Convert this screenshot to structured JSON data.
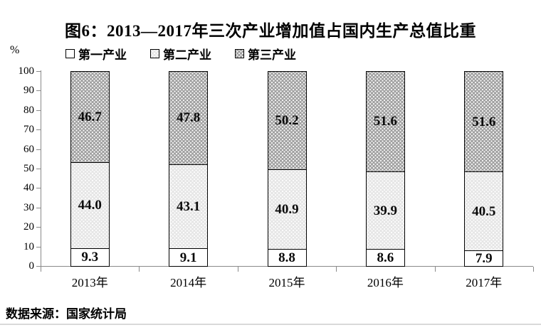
{
  "chart": {
    "source": "数据来源：国家统计局"
  },
  "chart_data": {
    "type": "bar",
    "stacked": true,
    "title": "图6：2013—2017年三次产业增加值占国内生产总值比重",
    "categories": [
      "2013年",
      "2014年",
      "2015年",
      "2016年",
      "2017年"
    ],
    "series": [
      {
        "name": "第一产业",
        "style": "white",
        "values": [
          9.3,
          9.1,
          8.8,
          8.6,
          7.9
        ]
      },
      {
        "name": "第二产业",
        "style": "light-dots",
        "values": [
          44.0,
          43.1,
          40.9,
          39.9,
          40.5
        ]
      },
      {
        "name": "第三产业",
        "style": "dark-dots",
        "values": [
          46.7,
          47.8,
          50.2,
          51.6,
          51.6
        ]
      }
    ],
    "ylabel": "%",
    "ylim": [
      0,
      100
    ],
    "yticks": [
      0,
      10,
      20,
      30,
      40,
      50,
      60,
      70,
      80,
      90,
      100
    ],
    "grid": false,
    "legend_position": "top-left",
    "value_labels": "inside-center",
    "colors": {
      "bar_border": "#000000",
      "dark_fill": "#a2a2a2",
      "light_fill": "#e6e6e6",
      "white_fill": "#ffffff",
      "axis": "#8a8a8a",
      "text": "#000000",
      "bottom_rule": "#d9d9d9"
    }
  }
}
